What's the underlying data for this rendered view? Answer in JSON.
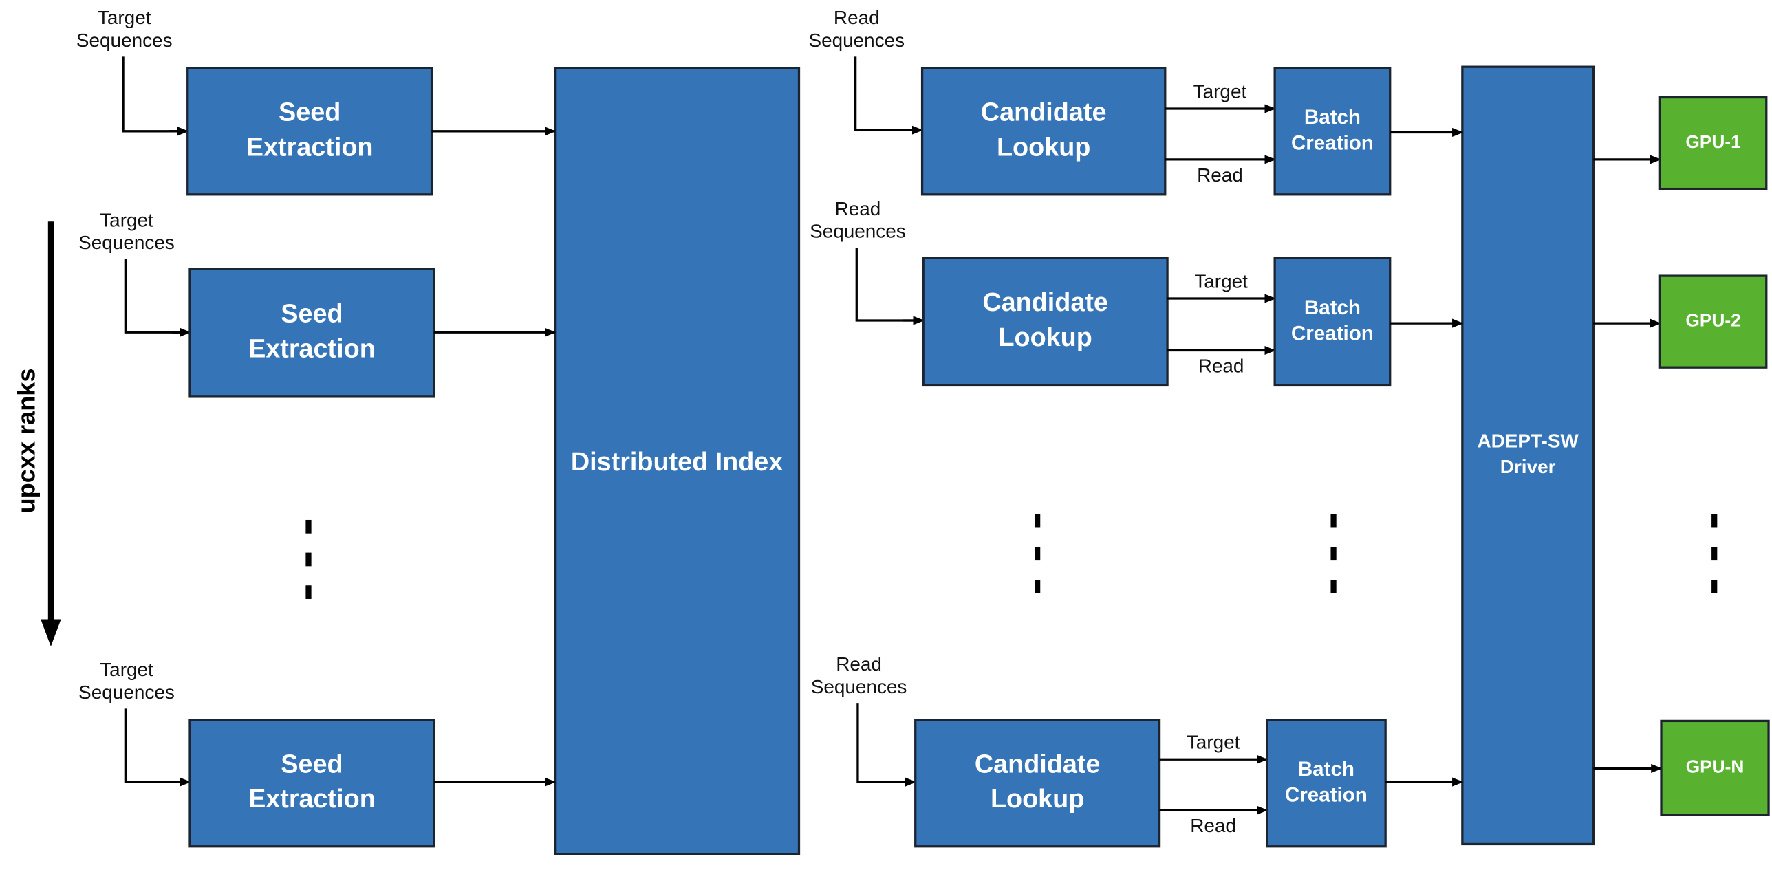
{
  "axis_label": "upcxx ranks",
  "distributed_index": "Distributed Index",
  "driver": [
    "ADEPT-SW",
    "Driver"
  ],
  "seed_rows": [
    {
      "input": [
        "Target",
        "Sequences"
      ],
      "box": [
        "Seed",
        "Extraction"
      ]
    },
    {
      "input": [
        "Target",
        "Sequences"
      ],
      "box": [
        "Seed",
        "Extraction"
      ]
    },
    {
      "input": [
        "Target",
        "Sequences"
      ],
      "box": [
        "Seed",
        "Extraction"
      ]
    }
  ],
  "align_rows": [
    {
      "input": [
        "Read",
        "Sequences"
      ],
      "lookup": [
        "Candidate",
        "Lookup"
      ],
      "edge_top": "Target",
      "edge_bottom": "Read",
      "batch": [
        "Batch",
        "Creation"
      ],
      "gpu": "GPU-1"
    },
    {
      "input": [
        "Read",
        "Sequences"
      ],
      "lookup": [
        "Candidate",
        "Lookup"
      ],
      "edge_top": "Target",
      "edge_bottom": "Read",
      "batch": [
        "Batch",
        "Creation"
      ],
      "gpu": "GPU-2"
    },
    {
      "input": [
        "Read",
        "Sequences"
      ],
      "lookup": [
        "Candidate",
        "Lookup"
      ],
      "edge_top": "Target",
      "edge_bottom": "Read",
      "batch": [
        "Batch",
        "Creation"
      ],
      "gpu": "GPU-N"
    }
  ]
}
